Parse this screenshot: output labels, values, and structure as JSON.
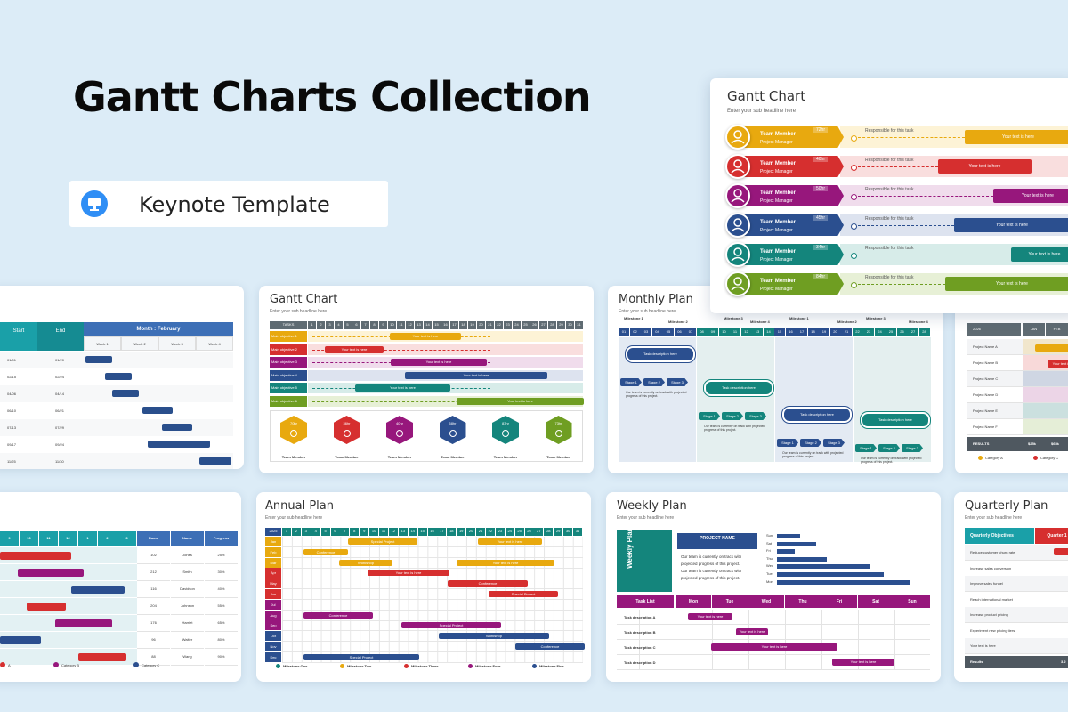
{
  "hero": {
    "title": "Gantt Charts Collection",
    "badge_label": "Keynote Template",
    "badge_icon": "keynote-podium-icon",
    "accent": "#2f8ef5"
  },
  "gantt_top": {
    "title": "Gantt Chart",
    "subtitle": "Enter your sub headline here",
    "rows": [
      {
        "name": "Team Member",
        "role": "Project Manager",
        "hours": "72hr",
        "note": "Responsible for this task",
        "bar": "Your text is here",
        "color": "#e8a90f",
        "light": "#fdf3d6"
      },
      {
        "name": "Team Member",
        "role": "Project Manager",
        "hours": "40hr",
        "note": "Responsible for this task",
        "bar": "Your text is here",
        "color": "#d62f2f",
        "light": "#f9dede"
      },
      {
        "name": "Team Member",
        "role": "Project Manager",
        "hours": "50hr",
        "note": "Responsible for this task",
        "bar": "Your text is here",
        "color": "#97177c",
        "light": "#f0dcec"
      },
      {
        "name": "Team Member",
        "role": "Project Manager",
        "hours": "45hr",
        "note": "Responsible for this task",
        "bar": "Your text is here",
        "color": "#2b4f8f",
        "light": "#dde3ef"
      },
      {
        "name": "Team Member",
        "role": "Project Manager",
        "hours": "34hr",
        "note": "Responsible for this task",
        "bar": "Your text is here",
        "color": "#14857c",
        "light": "#d7ece9"
      },
      {
        "name": "Team Member",
        "role": "Project Manager",
        "hours": "84hr",
        "note": "Responsible for this task",
        "bar": "Your text is here",
        "color": "#6f9e22",
        "light": "#e7f0d6"
      }
    ]
  },
  "card_month": {
    "headers": [
      "Start",
      "End"
    ],
    "month": "Month : February",
    "weeks": [
      "Week 1",
      "Week 2",
      "Week 3",
      "Week 4"
    ],
    "rows": [
      [
        "01/01",
        "01/20"
      ],
      [
        "02/15",
        "02/24"
      ],
      [
        "04/06",
        "04/14"
      ],
      [
        "06/10",
        "06/21"
      ],
      [
        "07/13",
        "07/29"
      ],
      [
        "09/17",
        "09/24"
      ],
      [
        "11/25",
        "11/30"
      ]
    ]
  },
  "card_gantt2": {
    "title": "Gantt Chart",
    "subtitle": "Enter your sub headline here",
    "tasks_label": "TASKS",
    "numbers": [
      "1",
      "2",
      "3",
      "4",
      "5",
      "6",
      "7",
      "8",
      "9",
      "10",
      "11",
      "12",
      "13",
      "14",
      "15",
      "16",
      "17",
      "18",
      "19",
      "20",
      "21",
      "22",
      "23",
      "24",
      "25",
      "26",
      "27",
      "28",
      "29",
      "30",
      "31"
    ],
    "rows": [
      {
        "label": "Main objective 1",
        "bar": "Your text is here",
        "color": "#e8a90f",
        "light": "#fdf3d6"
      },
      {
        "label": "Main objective 2",
        "bar": "Your text is here",
        "color": "#d62f2f",
        "light": "#f9dede"
      },
      {
        "label": "Main objective 3",
        "bar": "Your text is here",
        "color": "#97177c",
        "light": "#f0dcec"
      },
      {
        "label": "Main objective 4",
        "bar": "Your text is here",
        "color": "#2b4f8f",
        "light": "#dde3ef"
      },
      {
        "label": "Main objective 5",
        "bar": "Your text is here",
        "color": "#14857c",
        "light": "#d7ece9"
      },
      {
        "label": "Main objective 6",
        "bar": "Your text is here",
        "color": "#6f9e22",
        "light": "#e7f0d6"
      }
    ],
    "members": [
      {
        "label": "Team Member",
        "hours": "70hr",
        "color": "#e8a90f"
      },
      {
        "label": "Team Member",
        "hours": "36hr",
        "color": "#d62f2f"
      },
      {
        "label": "Team Member",
        "hours": "40hr",
        "color": "#97177c"
      },
      {
        "label": "Team Member",
        "hours": "58hr",
        "color": "#2b4f8f"
      },
      {
        "label": "Team Member",
        "hours": "83hr",
        "color": "#14857c"
      },
      {
        "label": "Team Member",
        "hours": "73hr",
        "color": "#6f9e22"
      }
    ]
  },
  "card_monthly": {
    "title": "Monthly Plan",
    "subtitle": "Enter your sub headline here",
    "milestones": [
      "Milestone 1",
      "Milestone 2",
      "Milestone 3",
      "Milestone 4",
      "Milestone 1",
      "Milestone 2",
      "Milestone 3",
      "Milestone 4"
    ],
    "days": [
      "01",
      "02",
      "03",
      "04",
      "05",
      "06",
      "07",
      "08",
      "09",
      "10",
      "11",
      "12",
      "13",
      "14",
      "15",
      "16",
      "17",
      "18",
      "19",
      "20",
      "21",
      "22",
      "23",
      "24",
      "25",
      "26",
      "27",
      "28"
    ],
    "task": "Task description here",
    "stages": [
      "Stage 1",
      "Stage 2",
      "Stage 3"
    ],
    "note": "Our team is currently on track with projected progress of this project."
  },
  "card_right_mid": {
    "year": "2026",
    "months": [
      "JAN",
      "FEB"
    ],
    "projects": [
      "Project Name A",
      "Project Name B",
      "Project Name C",
      "Project Name D",
      "Project Name E",
      "Project Name F"
    ],
    "results_label": "RESULTS",
    "results_values": [
      "$25k",
      "$65k"
    ],
    "bar_text": "Your text is here",
    "legend": [
      "Category A",
      "Category C"
    ]
  },
  "card_room": {
    "numbers": [
      "9",
      "10",
      "11",
      "12",
      "1",
      "2",
      "3"
    ],
    "headers": [
      "Room",
      "Name",
      "Progress"
    ],
    "rows": [
      [
        "102",
        "Jones",
        "25%"
      ],
      [
        "212",
        "Smith",
        "30%"
      ],
      [
        "116",
        "Davidson",
        "40%"
      ],
      [
        "204",
        "Johnson",
        "55%"
      ],
      [
        "176",
        "Harriet",
        "65%"
      ],
      [
        "96",
        "Walter",
        "80%"
      ],
      [
        "88",
        "Wang",
        "90%"
      ]
    ],
    "legend": [
      "A",
      "Category B",
      "Category C"
    ]
  },
  "card_annual": {
    "title": "Annual Plan",
    "subtitle": "Enter your sub headline here",
    "year": "2025",
    "months": [
      "Jan",
      "Feb",
      "Mar",
      "Apr",
      "May",
      "Jun",
      "Jul",
      "Aug",
      "Sep",
      "Oct",
      "Nov",
      "Dec"
    ],
    "numbers": [
      "1",
      "2",
      "3",
      "4",
      "5",
      "6",
      "7",
      "8",
      "9",
      "10",
      "11",
      "12",
      "13",
      "14",
      "15",
      "16",
      "17",
      "18",
      "19",
      "20",
      "21",
      "22",
      "23",
      "24",
      "25",
      "26",
      "27",
      "28",
      "29",
      "30",
      "31"
    ],
    "bars": [
      "Special Project",
      "Your text is here",
      "Conference",
      "Workshop",
      "Your text is here",
      "Your text is here",
      "Conference",
      "Special Project",
      "Conference",
      "Special Project",
      "Workshop",
      "Conference",
      "Special Project"
    ],
    "milestones": [
      "Milestone One",
      "Milestone Two",
      "Milestone Three",
      "Milestone Four",
      "Milestone Five"
    ]
  },
  "card_weekly": {
    "title": "Weekly Plan",
    "subtitle": "Enter your sub headline here",
    "side_label": "Weekly Plan",
    "project_name": "PROJECT NAME",
    "notes": [
      "Our team is currently on track with",
      "projected progress of this project.",
      "Our team is currently on track with",
      "projected progress of this project."
    ],
    "mini_days": [
      "Sun",
      "Sat",
      "Fri",
      "Thu",
      "Wed",
      "Tue",
      "Mon"
    ],
    "task_header": "Task List",
    "days": [
      "Mon",
      "Tue",
      "Wed",
      "Thu",
      "Fri",
      "Sat",
      "Sun"
    ],
    "tasks": [
      "Task description A",
      "Task description B",
      "Task description C",
      "Task description D"
    ],
    "bar_text": "Your text is here"
  },
  "card_quarterly": {
    "title": "Quarterly Plan",
    "subtitle": "Enter your sub headline here",
    "col_header": "Quarterly Objectives",
    "quarter": "Quarter 1",
    "objectives": [
      "Reduce customer churn rate",
      "Increase sales conversion",
      "Improve sales funnel",
      "Reach international market",
      "Increase product pricing",
      "Experiment new pricing tiers",
      "Your text is here"
    ],
    "results_label": "Results",
    "results_value": "3.2"
  }
}
